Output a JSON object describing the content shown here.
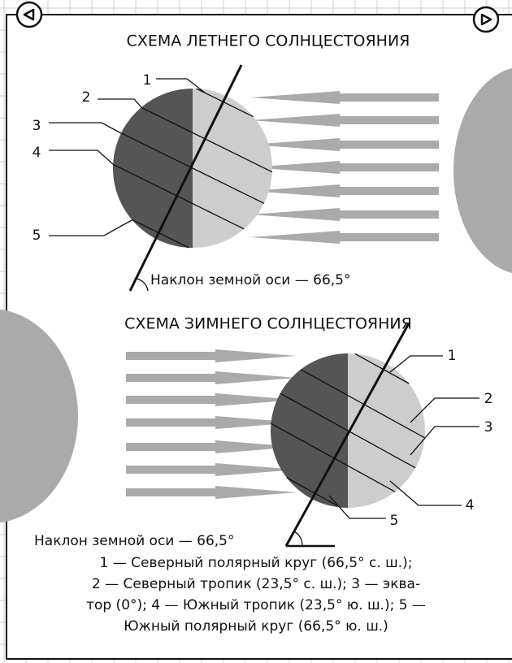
{
  "summer": {
    "title": "СХЕМА ЛЕТНЕГО СОЛНЦЕСТОЯНИЯ",
    "labels": [
      "1",
      "2",
      "3",
      "4",
      "5"
    ],
    "axis_note": "Наклон земной оси — 66,5°"
  },
  "winter": {
    "title": "СХЕМА ЗИМНЕГО СОЛНЦЕСТОЯНИЯ",
    "labels": [
      "1",
      "2",
      "3",
      "4",
      "5"
    ],
    "axis_note": "Наклон земной оси — 66,5°"
  },
  "legend": {
    "lines": [
      "1 — Северный полярный круг (66,5° с. ш.);",
      "2 — Северный тропик (23,5° с. ш.); 3 — эква-",
      "тор (0°); 4 — Южный тропик (23,5° ю. ш.); 5 —",
      "Южный полярный круг (66,5° ю. ш.)"
    ]
  }
}
